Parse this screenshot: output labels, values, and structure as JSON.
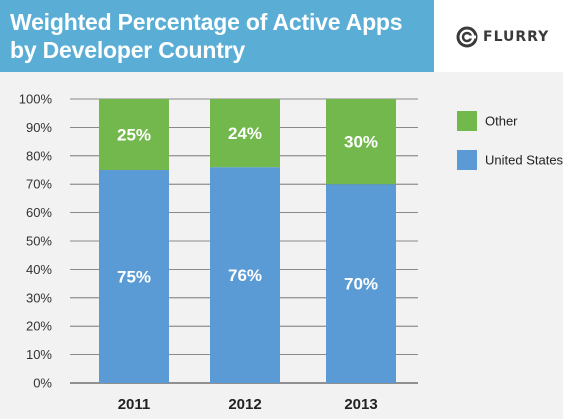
{
  "header": {
    "title_line1": "Weighted Percentage of Active Apps",
    "title_line2": "by Developer Country",
    "logo_text": "FLURRY"
  },
  "colors": {
    "header_bg": "#5aaed6",
    "united_states": "#5b9bd5",
    "other": "#72b84c"
  },
  "chart_data": {
    "type": "bar",
    "stacked": true,
    "title": "Weighted Percentage of Active Apps by Developer Country",
    "categories": [
      "2011",
      "2012",
      "2013"
    ],
    "series": [
      {
        "name": "United States",
        "values": [
          75,
          76,
          70
        ],
        "labels": [
          "75%",
          "76%",
          "70%"
        ],
        "color": "#5b9bd5"
      },
      {
        "name": "Other",
        "values": [
          25,
          24,
          30
        ],
        "labels": [
          "25%",
          "24%",
          "30%"
        ],
        "color": "#72b84c"
      }
    ],
    "yticks": [
      "0%",
      "10%",
      "20%",
      "30%",
      "40%",
      "50%",
      "60%",
      "70%",
      "80%",
      "90%",
      "100%"
    ],
    "ylim": [
      0,
      100
    ],
    "grid": true,
    "legend": {
      "placement": "right",
      "entries": [
        "Other",
        "United States"
      ]
    }
  }
}
